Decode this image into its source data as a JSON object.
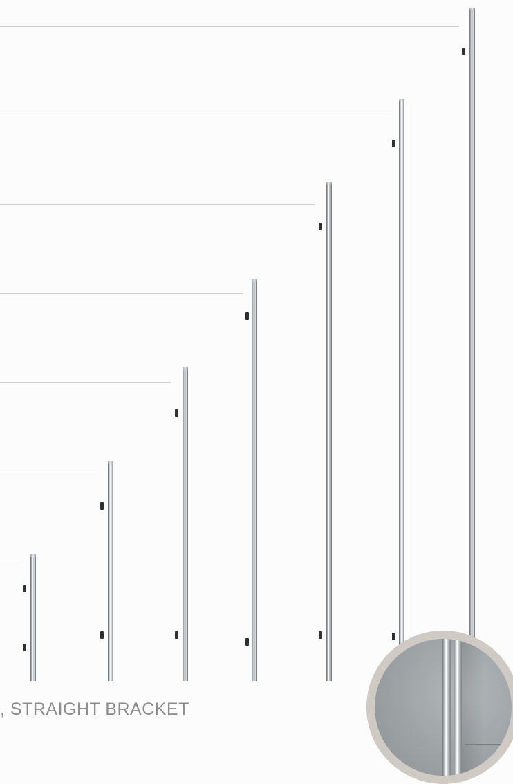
{
  "caption": ", STRAIGHT BRACKET",
  "colors": {
    "background": "#fcfcfc",
    "rod": "#c7ccd0",
    "bracket": "#2e3033",
    "guide_line": "#cfcfcf",
    "caption_text": "#8c8c8c",
    "zoom_ring": "#cfcac4"
  },
  "products": [
    {
      "name": "handle-size-1"
    },
    {
      "name": "handle-size-2"
    },
    {
      "name": "handle-size-3"
    },
    {
      "name": "handle-size-4"
    },
    {
      "name": "handle-size-5"
    },
    {
      "name": "handle-size-6"
    },
    {
      "name": "handle-size-7"
    }
  ],
  "detail_inset": {
    "icon": "zoom-detail-circle"
  }
}
